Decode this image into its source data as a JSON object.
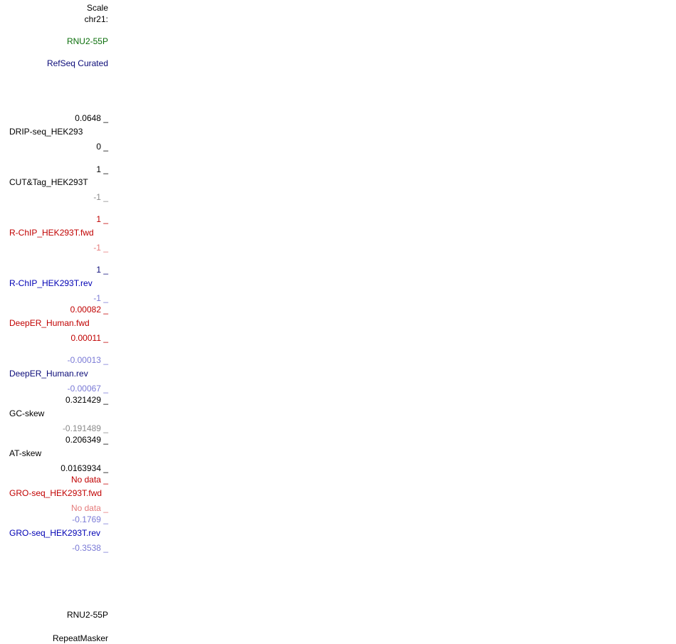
{
  "ruler": {
    "scale": "Scale",
    "chrom": "chr21:"
  },
  "gene_track": {
    "label": "RNU2-55P",
    "name": "RefSeq Curated"
  },
  "tracks": [
    {
      "max": "0.0648 _",
      "name": "DRIP-seq_HEK293",
      "min": "0 _"
    },
    {
      "max": "1 _",
      "name": "CUT&Tag_HEK293T",
      "min": "-1 _"
    },
    {
      "max": "1 _",
      "name": "R-ChIP_HEK293T.fwd",
      "min": "-1 _"
    },
    {
      "max": "1 _",
      "name": "R-ChIP_HEK293T.rev",
      "min": "-1 _"
    },
    {
      "max": "0.00082 _",
      "name": "DeepER_Human.fwd",
      "min": "0.00011 _"
    },
    {
      "max": "-0.00013 _",
      "name": "DeepER_Human.rev",
      "min": "-0.00067 _"
    },
    {
      "max": "0.321429 _",
      "name": "GC-skew",
      "min": "-0.191489 _"
    },
    {
      "max": "0.206349 _",
      "name": "AT-skew",
      "min": "0.0163934 _"
    },
    {
      "max": "No data _",
      "name": "GRO-seq_HEK293T.fwd",
      "min": "No data _"
    },
    {
      "max": "-0.1769 _",
      "name": "GRO-seq_HEK293T.rev",
      "min": "-0.3538 _"
    }
  ],
  "bottom": {
    "gene": "RNU2-55P",
    "repeats": "RepeatMasker"
  }
}
